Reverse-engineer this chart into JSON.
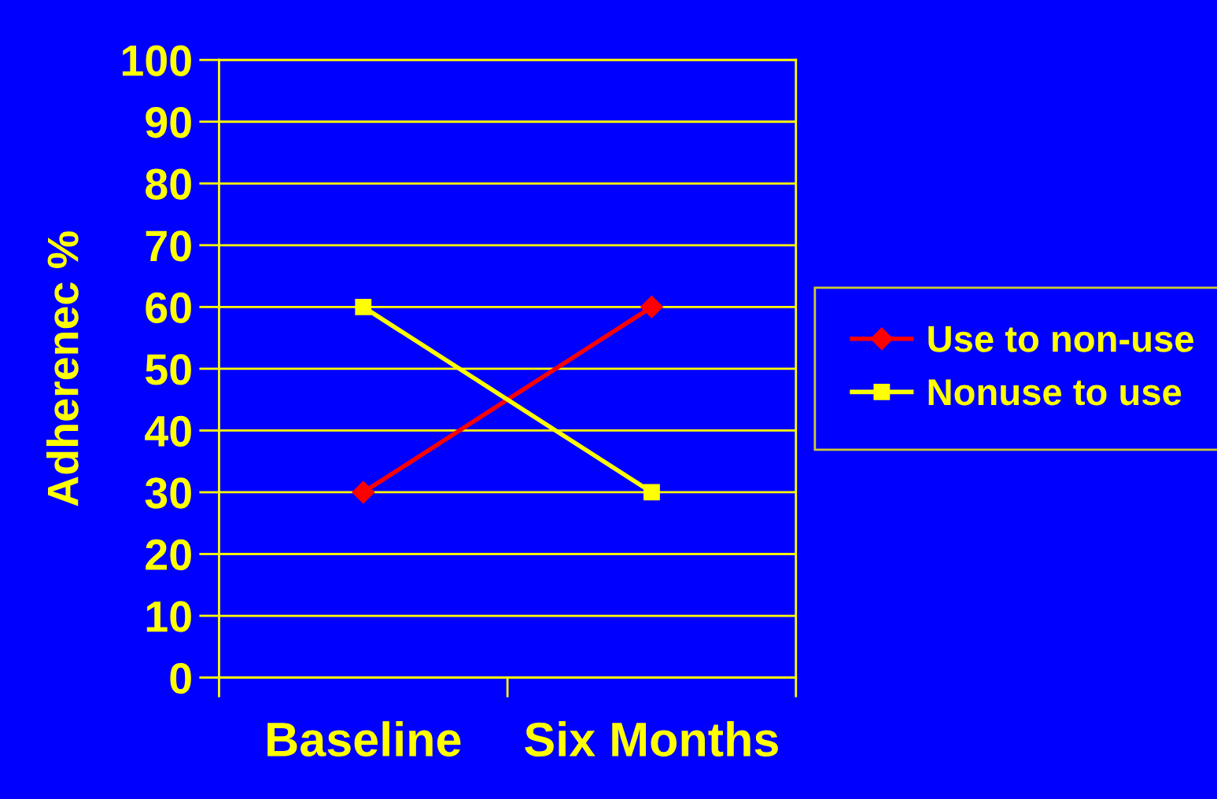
{
  "chart_data": {
    "type": "line",
    "ylabel": "Adherenec %",
    "categories": [
      "Baseline",
      "Six Months"
    ],
    "series": [
      {
        "name": "Use to non-use",
        "color": "#ff0000",
        "marker": "diamond",
        "values": [
          30,
          60
        ]
      },
      {
        "name": "Nonuse to use",
        "color": "#ffff00",
        "marker": "square",
        "values": [
          60,
          30
        ]
      }
    ],
    "ylim": [
      0,
      100
    ],
    "yticks": [
      0,
      10,
      20,
      30,
      40,
      50,
      60,
      70,
      80,
      90,
      100
    ],
    "grid": "y",
    "legend": "right",
    "line_style": "solid"
  }
}
